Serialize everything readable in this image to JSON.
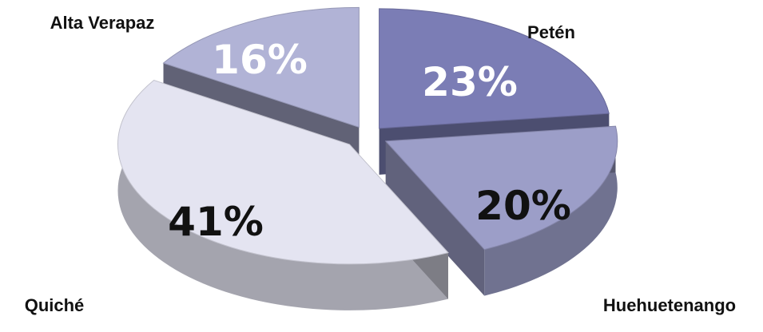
{
  "chart_data": {
    "type": "pie",
    "style": "3d-exploded",
    "title": "",
    "categories": [
      "Petén",
      "Huehuetenango",
      "Quiché",
      "Alta Verapaz"
    ],
    "values": [
      23,
      20,
      41,
      16
    ],
    "value_labels": [
      "23%",
      "20%",
      "41%",
      "16%"
    ],
    "colors": [
      "#7b7db5",
      "#9c9ec8",
      "#e4e4f1",
      "#b1b3d6"
    ],
    "label_colors": [
      "#ffffff",
      "#111111",
      "#111111",
      "#ffffff"
    ],
    "legend": "none"
  }
}
